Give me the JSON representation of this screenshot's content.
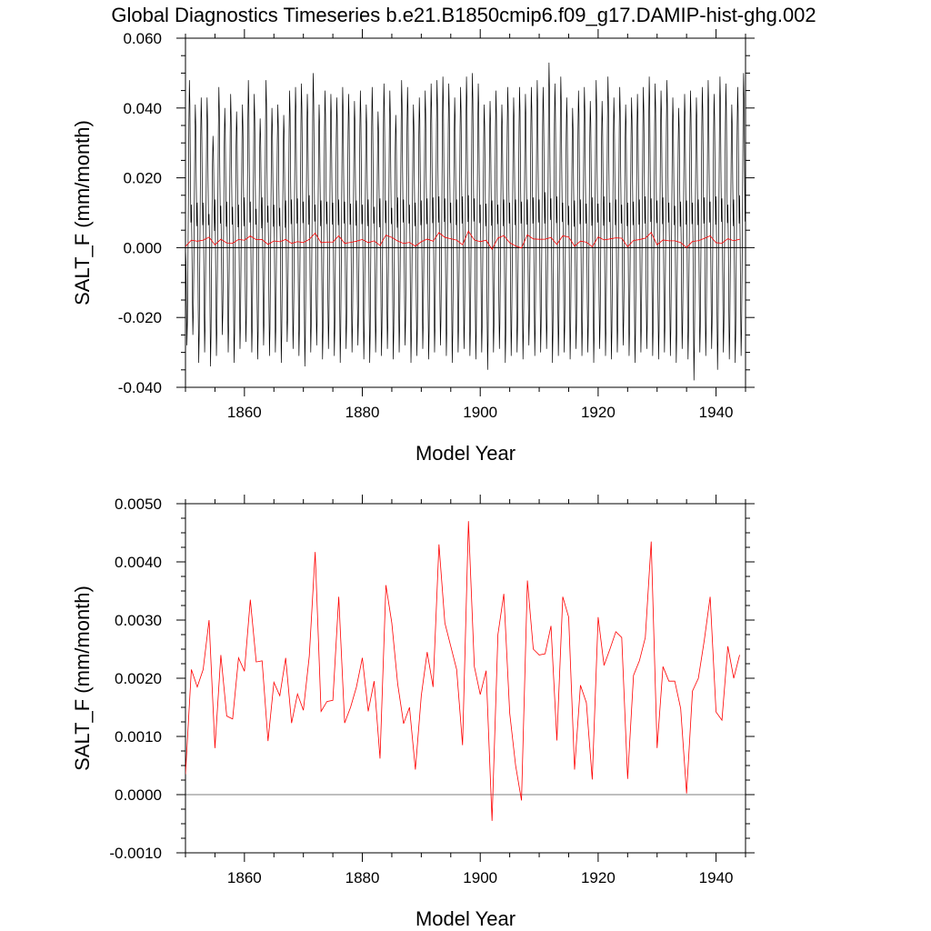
{
  "title": "Global Diagnostics Timeseries b.e21.B1850cmip6.f09_g17.DAMIP-hist-ghg.002",
  "colors": {
    "monthly": "#000000",
    "annual": "#ff0000",
    "zero_line": "#000000"
  },
  "chart_data": [
    {
      "type": "line",
      "xlabel": "Model Year",
      "ylabel": "SALT_F (mm/month)",
      "xlim": [
        1850,
        1945
      ],
      "ylim": [
        -0.04,
        0.06
      ],
      "xticks": [
        1860,
        1880,
        1900,
        1920,
        1940
      ],
      "yticks": [
        "-0.040",
        "-0.020",
        "0.000",
        "0.020",
        "0.040",
        "0.060"
      ],
      "grid": false,
      "series": [
        {
          "key": "monthly",
          "color": "#000000",
          "description_values": "monthly seasonal cycle, first value ≈ 0.000",
          "annual_max": [
            0.048,
            0.041,
            0.043,
            0.043,
            0.032,
            0.046,
            0.04,
            0.044,
            0.039,
            0.041,
            0.048,
            0.044,
            0.037,
            0.048,
            0.04,
            0.041,
            0.038,
            0.045,
            0.046,
            0.047,
            0.044,
            0.05,
            0.041,
            0.045,
            0.044,
            0.043,
            0.046,
            0.044,
            0.042,
            0.045,
            0.041,
            0.046,
            0.039,
            0.047,
            0.045,
            0.038,
            0.048,
            0.046,
            0.041,
            0.043,
            0.045,
            0.047,
            0.048,
            0.049,
            0.047,
            0.043,
            0.046,
            0.049,
            0.05,
            0.047,
            0.041,
            0.042,
            0.045,
            0.041,
            0.046,
            0.043,
            0.046,
            0.044,
            0.046,
            0.048,
            0.046,
            0.053,
            0.047,
            0.049,
            0.043,
            0.04,
            0.045,
            0.046,
            0.042,
            0.048,
            0.042,
            0.049,
            0.043,
            0.046,
            0.041,
            0.043,
            0.044,
            0.046,
            0.049,
            0.047,
            0.045,
            0.048,
            0.043,
            0.04,
            0.044,
            0.045,
            0.043,
            0.046,
            0.048,
            0.044,
            0.049,
            0.047,
            0.041,
            0.046,
            0.05
          ],
          "annual_min": [
            -0.028,
            -0.025,
            -0.033,
            -0.03,
            -0.034,
            -0.031,
            -0.025,
            -0.03,
            -0.033,
            -0.029,
            -0.027,
            -0.03,
            -0.032,
            -0.028,
            -0.031,
            -0.03,
            -0.033,
            -0.027,
            -0.029,
            -0.031,
            -0.034,
            -0.03,
            -0.028,
            -0.032,
            -0.029,
            -0.031,
            -0.033,
            -0.029,
            -0.03,
            -0.028,
            -0.032,
            -0.033,
            -0.03,
            -0.031,
            -0.029,
            -0.032,
            -0.03,
            -0.028,
            -0.033,
            -0.031,
            -0.029,
            -0.032,
            -0.03,
            -0.028,
            -0.031,
            -0.033,
            -0.03,
            -0.029,
            -0.031,
            -0.032,
            -0.03,
            -0.035,
            -0.03,
            -0.029,
            -0.033,
            -0.031,
            -0.03,
            -0.032,
            -0.028,
            -0.031,
            -0.03,
            -0.029,
            -0.033,
            -0.031,
            -0.03,
            -0.032,
            -0.029,
            -0.031,
            -0.03,
            -0.033,
            -0.029,
            -0.031,
            -0.032,
            -0.03,
            -0.028,
            -0.031,
            -0.033,
            -0.03,
            -0.029,
            -0.031,
            -0.032,
            -0.03,
            -0.031,
            -0.033,
            -0.029,
            -0.032,
            -0.038,
            -0.03,
            -0.031,
            -0.029,
            -0.035,
            -0.03,
            -0.032,
            -0.033,
            -0.031
          ]
        },
        {
          "key": "annual",
          "color": "#ff0000",
          "x_start": 1850,
          "values": [
            0.00035,
            0.00215,
            0.00185,
            0.00215,
            0.003,
            0.0008,
            0.0024,
            0.00135,
            0.0013,
            0.00235,
            0.00212,
            0.00335,
            0.00228,
            0.0023,
            0.00092,
            0.00193,
            0.0017,
            0.00235,
            0.00123,
            0.00173,
            0.00145,
            0.00238,
            0.00417,
            0.00143,
            0.0016,
            0.00162,
            0.0034,
            0.00123,
            0.0015,
            0.00185,
            0.00235,
            0.00143,
            0.00195,
            0.00062,
            0.0036,
            0.00295,
            0.0019,
            0.00122,
            0.0015,
            0.00043,
            0.0017,
            0.00245,
            0.00185,
            0.0043,
            0.00295,
            0.00255,
            0.00215,
            0.00085,
            0.0047,
            0.0022,
            0.00172,
            0.00213,
            -0.00045,
            0.00275,
            0.00345,
            0.0014,
            0.0005,
            -0.0001,
            0.00368,
            0.0025,
            0.0024,
            0.00242,
            0.0029,
            0.00093,
            0.0034,
            0.00305,
            0.00043,
            0.00188,
            0.00158,
            0.00026,
            0.00305,
            0.00222,
            0.0025,
            0.0028,
            0.0027,
            0.00027,
            0.00205,
            0.0023,
            0.0027,
            0.00435,
            0.0008,
            0.0022,
            0.00195,
            0.00195,
            0.00148,
            2e-05,
            0.00178,
            0.002,
            0.00265,
            0.0034,
            0.00142,
            0.00128,
            0.00255,
            0.002,
            0.0024
          ]
        }
      ]
    },
    {
      "type": "line",
      "xlabel": "Model Year",
      "ylabel": "SALT_F (mm/month)",
      "xlim": [
        1850,
        1945
      ],
      "ylim": [
        -0.001,
        0.005
      ],
      "xticks": [
        1860,
        1880,
        1900,
        1920,
        1940
      ],
      "yticks": [
        "-0.0010",
        "0.0000",
        "0.0010",
        "0.0020",
        "0.0030",
        "0.0040",
        "0.0050"
      ],
      "grid": false,
      "series": [
        {
          "key": "annual",
          "color": "#ff0000",
          "x_start": 1850,
          "same_as_top_annual": true
        }
      ]
    }
  ]
}
